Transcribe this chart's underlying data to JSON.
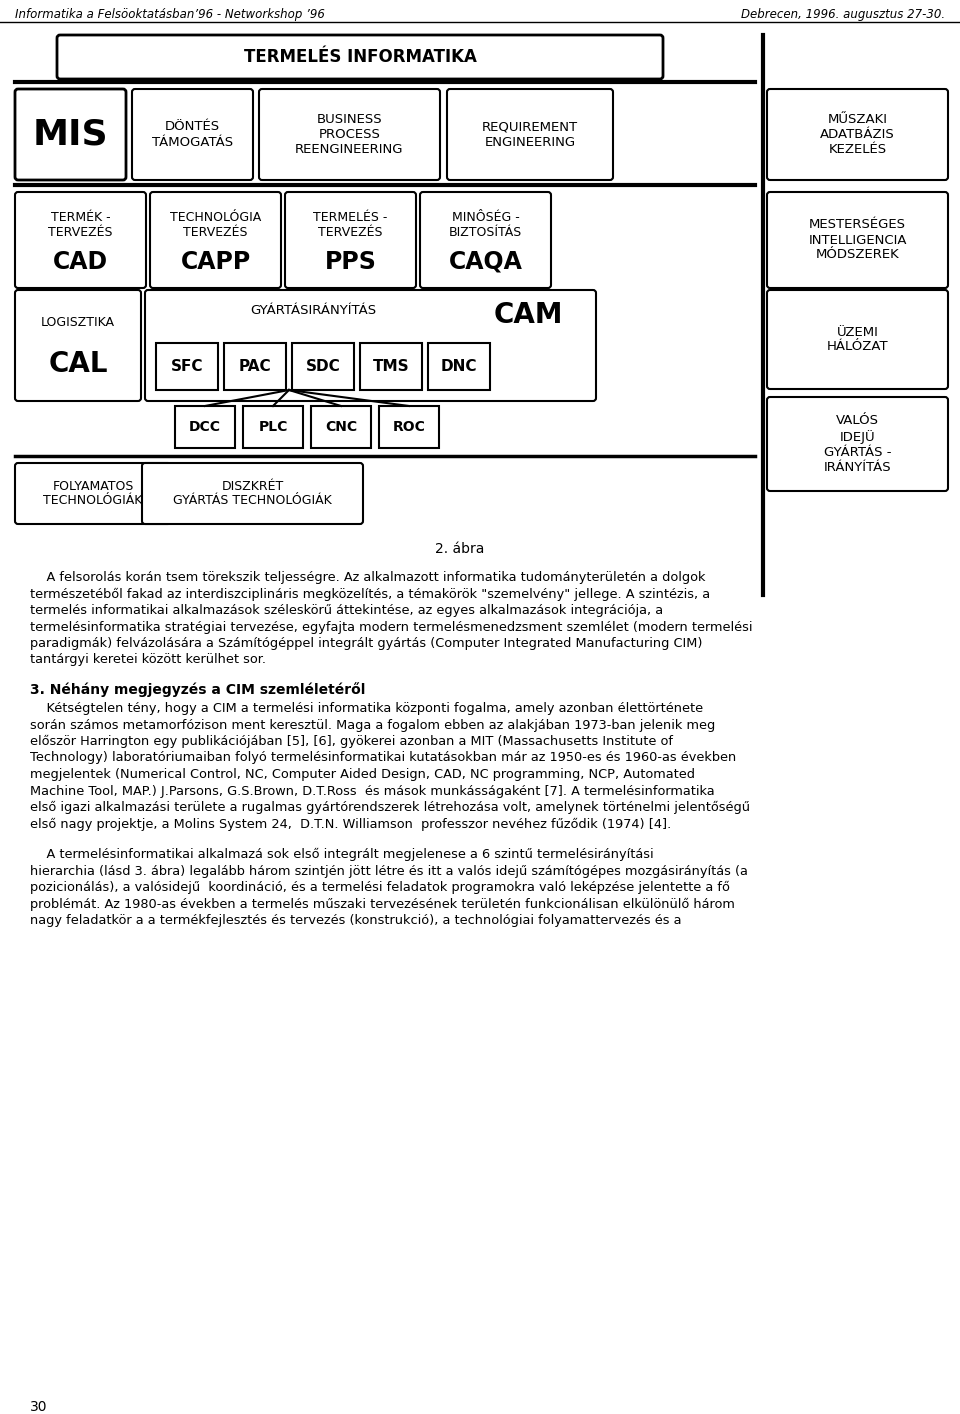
{
  "header_left": "Informatika a Felsöoktatásban’96 - Networkshop ’96",
  "header_right": "Debrecen, 1996. augusztus 27-30.",
  "caption": "2. ábra",
  "title_box": "TERMELÉS INFORMATIKA",
  "row1_boxes": [
    {
      "text": "MIS",
      "large": true
    },
    {
      "text": "DÖNTÉS\nTÁMOGATÁS",
      "large": false
    },
    {
      "text": "BUSINESS\nPROCESS\nREENGINEERING",
      "large": false
    },
    {
      "text": "REQUIREMENT\nENGINEERING",
      "large": false
    }
  ],
  "row1_right": "MŰSZAKI\nADATBÁZIS\nKEZELÉS",
  "row2_boxes": [
    {
      "top": "TERMÉK -\nTERVEZÉS",
      "bot": "CAD"
    },
    {
      "top": "TECHNOLÓGIA\nTERVEZÉS",
      "bot": "CAPP"
    },
    {
      "top": "TERMELÉS -\nTERVEZÉS",
      "bot": "PPS"
    },
    {
      "top": "MINÔSÉG -\nBIZTOSÍTÁS",
      "bot": "CAQA"
    }
  ],
  "row2_right": "MESTERSÉGES\nINTELLIGENCIA\nMÓDSZEREK",
  "row3_left_top": "LOGISZTIKA",
  "row3_left_bot": "CAL",
  "row3_cam_label": "GYÁRTÁSIRÁNYÍTÁS",
  "row3_cam_big": "CAM",
  "row3_sub": [
    "SFC",
    "PAC",
    "SDC",
    "TMS",
    "DNC"
  ],
  "row3_right": "ÜZEMI\nHÁLÓZAT",
  "row4_sub": [
    "DCC",
    "PLC",
    "CNC",
    "ROC"
  ],
  "row4_right": "VALÓS\nIDEJÜ\nGYÁRTÁS -\nIRÁNYÍTÁS",
  "row5_boxes": [
    {
      "text": "FOLYAMATOS\nTECHNOLÓGIÁK"
    },
    {
      "text": "DISZKRÉT\nGYÁRTÁS TECHNOLÓGIÁK"
    }
  ],
  "body_para1": "    A felsorolás korántsem törekszik teljességre. Az alkalmazott informatika tudományterületén a dolgok természetéből fakad az interdiszciplináris megközelítés, a témakörök \"szemelvény\" jellege. A szintézis, a termelés informatikai alkalmazások szélesskörű áttekintése, az egyes alkalmazások integrációja, a termelésinformatika stratégiai tervezése, egyfajta modern termelésmenedzsment szemlélet (modern termelési paradigmák) felvázolására a Számítógéppel integrált gyártás (Computer Integrated Manufacturing CIM) tantárgyi keretei között kerülhet sor.",
  "section_title": "3. Néhány megjegyzés a CIM szemléletéről",
  "body_para2": "    Kétségtelen tény, hogy a CIM a termelési informatika központi fogalma, amely azonban élettörténete során számos metamorfózison ment keresztül. Maga a fogalom ebben az alakjában 1973-ban jelenik meg először Harrington egy publikációjában [5], [6], gyökerei azonban a MIT (Massachusetts Institute of Technology) laboratóriumaiban folyó termelésinformatikai kutatásokban már az 1950-es és 1960-as években megjelentek (Numerical Control, NC, Computer Aided Design, CAD, NC programming, NCP, Automated Machine Tool, MAP.) J.Parsons, G.S.Brown, D.T.Ross  és mások munkásságaként [7]. A termelésinformatika első igazi alkalmazási területe a rugalmas gyártórendszerek létrehozása volt, amelynek történelmi jelentőségű első nagy projektje, a Molins System 24,  D.T.N. Williamson  professzor nevéhez fűződik (1974) [4].",
  "body_para3": "    A termelésinformatikai alkalmazá sok első integrált megjelenese a 6 szintű termelésirányítási hierarchia (lásd 3. ábra) legalább három szintjén jött létre és itt a valós idejû számítógépes mozgásirányítás (a pozicionálás), a valósidejû  koordináció, és a termelési feladatok programokra való leképzése jelentette a fõ problémát. Az 1980-as években a termelés mûszaki tervezésének területén funkcionálisan elkülönülõ három nagy feladatkör a a termékfejlesztés és tervezés (konstrukció), a technológiai folyamattervezés és a",
  "footer_page": "30"
}
